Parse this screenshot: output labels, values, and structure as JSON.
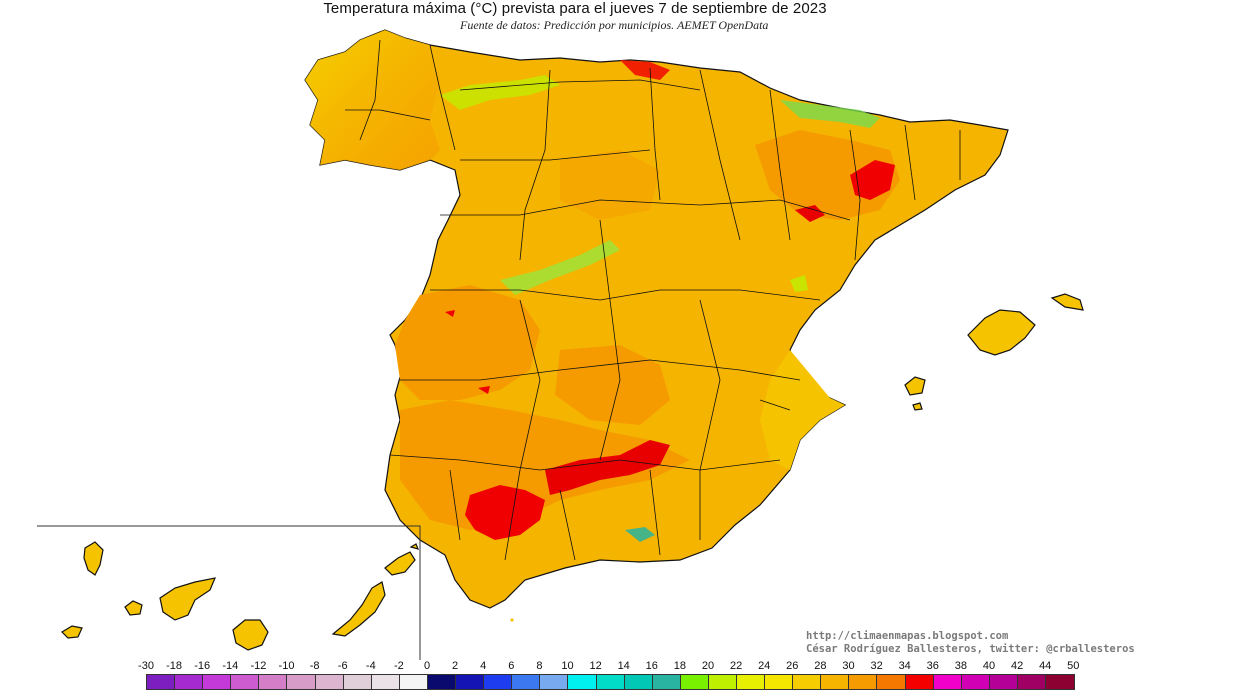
{
  "title": "Temperatura máxima (°C) prevista para el jueves 7 de septiembre de 2023",
  "subtitle": "Fuente de datos: Predicción por municipios. AEMET OpenData",
  "credits": {
    "url": "http://climaenmapas.blogspot.com",
    "author": "César Rodríguez Ballesteros, twitter: @crballesteros"
  },
  "legend": {
    "labels": [
      "-30",
      "-18",
      "-16",
      "-14",
      "-12",
      "-10",
      "-8",
      "-6",
      "-4",
      "-2",
      "0",
      "2",
      "4",
      "6",
      "8",
      "10",
      "12",
      "14",
      "16",
      "18",
      "20",
      "22",
      "24",
      "26",
      "28",
      "30",
      "32",
      "34",
      "36",
      "38",
      "40",
      "42",
      "44",
      "50"
    ],
    "colors": [
      "#7d1ec0",
      "#a52ad0",
      "#c33ad8",
      "#cc5cd0",
      "#d47ec8",
      "#d89cc8",
      "#dcb6d0",
      "#e0cfd8",
      "#ebe2e8",
      "#f4f4f4",
      "#0a0a6e",
      "#1414b4",
      "#1e3cf0",
      "#3c78f0",
      "#78aaf0",
      "#00f0f0",
      "#00dcc8",
      "#00c8b4",
      "#28b4a0",
      "#78f000",
      "#bef000",
      "#e6f000",
      "#f5e600",
      "#f5cd00",
      "#f5b400",
      "#f59b00",
      "#f57800",
      "#f50000",
      "#f000c8",
      "#d200b4",
      "#b40096",
      "#a00064",
      "#8c0032"
    ]
  },
  "regions": {
    "peninsula": "España peninsular",
    "baleares": "Islas Baleares",
    "canarias": "Islas Canarias"
  }
}
